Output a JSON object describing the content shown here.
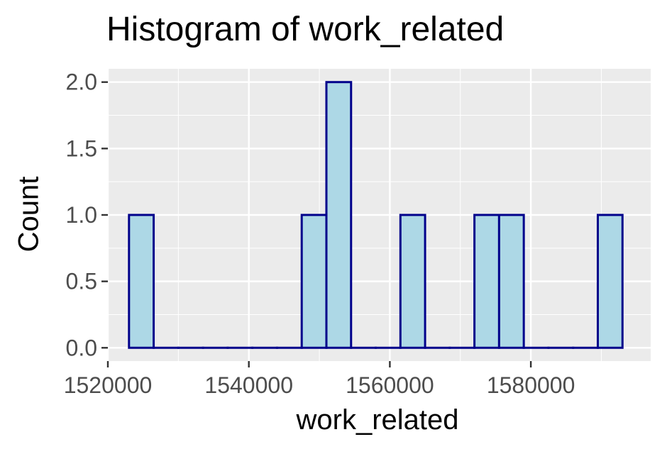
{
  "chart_data": {
    "type": "bar",
    "title": "Histogram of work_related",
    "xlabel": "work_related",
    "ylabel": "Count",
    "bins": [
      {
        "x0": 1523000,
        "x1": 1526500,
        "count": 1
      },
      {
        "x0": 1526500,
        "x1": 1530000,
        "count": 0
      },
      {
        "x0": 1530000,
        "x1": 1533500,
        "count": 0
      },
      {
        "x0": 1533500,
        "x1": 1537000,
        "count": 0
      },
      {
        "x0": 1537000,
        "x1": 1540500,
        "count": 0
      },
      {
        "x0": 1540500,
        "x1": 1544000,
        "count": 0
      },
      {
        "x0": 1544000,
        "x1": 1547500,
        "count": 0
      },
      {
        "x0": 1547500,
        "x1": 1551000,
        "count": 1
      },
      {
        "x0": 1551000,
        "x1": 1554500,
        "count": 2
      },
      {
        "x0": 1554500,
        "x1": 1558000,
        "count": 0
      },
      {
        "x0": 1558000,
        "x1": 1561500,
        "count": 0
      },
      {
        "x0": 1561500,
        "x1": 1565000,
        "count": 1
      },
      {
        "x0": 1565000,
        "x1": 1568500,
        "count": 0
      },
      {
        "x0": 1568500,
        "x1": 1572000,
        "count": 0
      },
      {
        "x0": 1572000,
        "x1": 1575500,
        "count": 1
      },
      {
        "x0": 1575500,
        "x1": 1579000,
        "count": 1
      },
      {
        "x0": 1579000,
        "x1": 1582500,
        "count": 0
      },
      {
        "x0": 1582500,
        "x1": 1586000,
        "count": 0
      },
      {
        "x0": 1586000,
        "x1": 1589500,
        "count": 0
      },
      {
        "x0": 1589500,
        "x1": 1593000,
        "count": 1
      }
    ],
    "xlim": [
      1520000,
      1597000
    ],
    "ylim": [
      -0.1,
      2.1
    ],
    "x_ticks": [
      1520000,
      1540000,
      1560000,
      1580000
    ],
    "x_tick_labels": [
      "1520000",
      "1540000",
      "1560000",
      "1580000"
    ],
    "y_ticks": [
      0,
      0.5,
      1,
      1.5,
      2
    ],
    "y_tick_labels": [
      "0.0",
      "0.5",
      "1.0",
      "1.5",
      "2.0"
    ],
    "grid": true,
    "colors": {
      "panel_background": "#ebebeb",
      "grid": "#ffffff",
      "bar_fill": "#add8e6",
      "bar_outline": "#00008b",
      "axis_text": "#4d4d4d",
      "tick": "#333333"
    }
  }
}
